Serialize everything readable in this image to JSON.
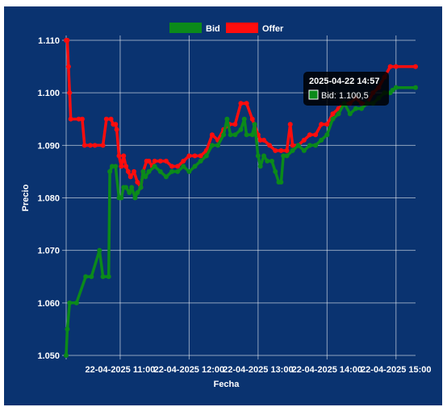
{
  "chart_data": {
    "type": "line",
    "title": "",
    "xlabel": "Fecha",
    "ylabel": "Precio",
    "ylim": [
      1.05,
      1.11
    ],
    "y_ticks": [
      "1.050",
      "1.060",
      "1.070",
      "1.080",
      "1.090",
      "1.100",
      "1.110"
    ],
    "x_tick_labels": [
      "22-04-2025 11:00",
      "22-04-2025 12:00",
      "22-04-2025 13:00",
      "22-04-2025 14:00",
      "22-04-2025 15:00"
    ],
    "x_range": [
      "10:13",
      "15:17"
    ],
    "grid": true,
    "legend_position": "top-center",
    "series": [
      {
        "name": "Bid",
        "color": "#0b8a1a",
        "points": [
          [
            "10:13",
            1.05
          ],
          [
            "10:14",
            1.055
          ],
          [
            "10:16",
            1.06
          ],
          [
            "10:22",
            1.06
          ],
          [
            "10:30",
            1.065
          ],
          [
            "10:35",
            1.065
          ],
          [
            "10:42",
            1.07
          ],
          [
            "10:45",
            1.065
          ],
          [
            "10:50",
            1.065
          ],
          [
            "10:51",
            1.085
          ],
          [
            "10:53",
            1.086
          ],
          [
            "10:56",
            1.086
          ],
          [
            "10:59",
            1.08
          ],
          [
            "11:01",
            1.08
          ],
          [
            "11:03",
            1.082
          ],
          [
            "11:05",
            1.082
          ],
          [
            "11:08",
            1.081
          ],
          [
            "11:10",
            1.082
          ],
          [
            "11:13",
            1.08
          ],
          [
            "11:15",
            1.081
          ],
          [
            "11:18",
            1.082
          ],
          [
            "11:20",
            1.085
          ],
          [
            "11:22",
            1.084
          ],
          [
            "11:25",
            1.085
          ],
          [
            "11:30",
            1.086
          ],
          [
            "11:35",
            1.085
          ],
          [
            "11:40",
            1.084
          ],
          [
            "11:45",
            1.085
          ],
          [
            "11:50",
            1.085
          ],
          [
            "11:55",
            1.086
          ],
          [
            "12:00",
            1.085
          ],
          [
            "12:05",
            1.086
          ],
          [
            "12:10",
            1.087
          ],
          [
            "12:15",
            1.088
          ],
          [
            "12:20",
            1.09
          ],
          [
            "12:25",
            1.09
          ],
          [
            "12:30",
            1.092
          ],
          [
            "12:33",
            1.095
          ],
          [
            "12:36",
            1.092
          ],
          [
            "12:40",
            1.092
          ],
          [
            "12:45",
            1.093
          ],
          [
            "12:48",
            1.095
          ],
          [
            "12:50",
            1.092
          ],
          [
            "12:55",
            1.092
          ],
          [
            "12:57",
            1.094
          ],
          [
            "13:00",
            1.088
          ],
          [
            "13:02",
            1.086
          ],
          [
            "13:05",
            1.088
          ],
          [
            "13:08",
            1.087
          ],
          [
            "13:12",
            1.087
          ],
          [
            "13:15",
            1.085
          ],
          [
            "13:18",
            1.083
          ],
          [
            "13:20",
            1.083
          ],
          [
            "13:22",
            1.088
          ],
          [
            "13:25",
            1.088
          ],
          [
            "13:30",
            1.089
          ],
          [
            "13:35",
            1.09
          ],
          [
            "13:40",
            1.089
          ],
          [
            "13:45",
            1.09
          ],
          [
            "13:50",
            1.09
          ],
          [
            "13:55",
            1.091
          ],
          [
            "14:00",
            1.092
          ],
          [
            "14:05",
            1.095
          ],
          [
            "14:10",
            1.096
          ],
          [
            "14:15",
            1.098
          ],
          [
            "14:20",
            1.096
          ],
          [
            "14:25",
            1.097
          ],
          [
            "14:30",
            1.097
          ],
          [
            "14:35",
            1.098
          ],
          [
            "14:40",
            1.098
          ],
          [
            "14:45",
            1.099
          ],
          [
            "14:50",
            1.1
          ],
          [
            "14:55",
            1.1
          ],
          [
            "14:57",
            1.1005
          ],
          [
            "15:00",
            1.101
          ],
          [
            "15:17",
            1.101
          ]
        ]
      },
      {
        "name": "Offer",
        "color": "#ff0d0d",
        "points": [
          [
            "10:13",
            1.11
          ],
          [
            "10:14",
            1.11
          ],
          [
            "10:15",
            1.105
          ],
          [
            "10:16",
            1.1
          ],
          [
            "10:17",
            1.095
          ],
          [
            "10:24",
            1.095
          ],
          [
            "10:27",
            1.095
          ],
          [
            "10:29",
            1.09
          ],
          [
            "10:34",
            1.09
          ],
          [
            "10:38",
            1.09
          ],
          [
            "10:45",
            1.09
          ],
          [
            "10:48",
            1.095
          ],
          [
            "10:52",
            1.095
          ],
          [
            "10:54",
            1.094
          ],
          [
            "10:56",
            1.094
          ],
          [
            "10:57",
            1.093
          ],
          [
            "10:59",
            1.088
          ],
          [
            "11:01",
            1.086
          ],
          [
            "11:03",
            1.088
          ],
          [
            "11:05",
            1.086
          ],
          [
            "11:07",
            1.085
          ],
          [
            "11:09",
            1.084
          ],
          [
            "11:12",
            1.085
          ],
          [
            "11:15",
            1.083
          ],
          [
            "11:18",
            1.082
          ],
          [
            "11:20",
            1.085
          ],
          [
            "11:23",
            1.087
          ],
          [
            "11:25",
            1.087
          ],
          [
            "11:28",
            1.086
          ],
          [
            "11:30",
            1.087
          ],
          [
            "11:35",
            1.087
          ],
          [
            "11:40",
            1.087
          ],
          [
            "11:45",
            1.086
          ],
          [
            "11:50",
            1.086
          ],
          [
            "11:55",
            1.087
          ],
          [
            "12:00",
            1.088
          ],
          [
            "12:05",
            1.088
          ],
          [
            "12:10",
            1.088
          ],
          [
            "12:15",
            1.089
          ],
          [
            "12:20",
            1.092
          ],
          [
            "12:25",
            1.091
          ],
          [
            "12:30",
            1.093
          ],
          [
            "12:35",
            1.094
          ],
          [
            "12:40",
            1.094
          ],
          [
            "12:45",
            1.098
          ],
          [
            "12:50",
            1.098
          ],
          [
            "12:55",
            1.095
          ],
          [
            "13:00",
            1.092
          ],
          [
            "13:02",
            1.091
          ],
          [
            "13:05",
            1.091
          ],
          [
            "13:10",
            1.09
          ],
          [
            "13:15",
            1.089
          ],
          [
            "13:20",
            1.089
          ],
          [
            "13:25",
            1.089
          ],
          [
            "13:28",
            1.094
          ],
          [
            "13:30",
            1.09
          ],
          [
            "13:35",
            1.09
          ],
          [
            "13:40",
            1.091
          ],
          [
            "13:45",
            1.092
          ],
          [
            "13:50",
            1.092
          ],
          [
            "13:55",
            1.094
          ],
          [
            "14:00",
            1.094
          ],
          [
            "14:05",
            1.096
          ],
          [
            "14:10",
            1.097
          ],
          [
            "14:15",
            1.098
          ],
          [
            "14:20",
            1.098
          ],
          [
            "14:25",
            1.099
          ],
          [
            "14:30",
            1.098
          ],
          [
            "14:35",
            1.098
          ],
          [
            "14:40",
            1.1
          ],
          [
            "14:45",
            1.101
          ],
          [
            "14:50",
            1.103
          ],
          [
            "14:55",
            1.105
          ],
          [
            "15:00",
            1.105
          ],
          [
            "15:17",
            1.105
          ]
        ]
      }
    ],
    "tooltip": {
      "title": "2025-04-22 14:57",
      "label": "Bid: 1.100,5",
      "series": "Bid",
      "x": "14:57",
      "y": 1.1005
    }
  }
}
